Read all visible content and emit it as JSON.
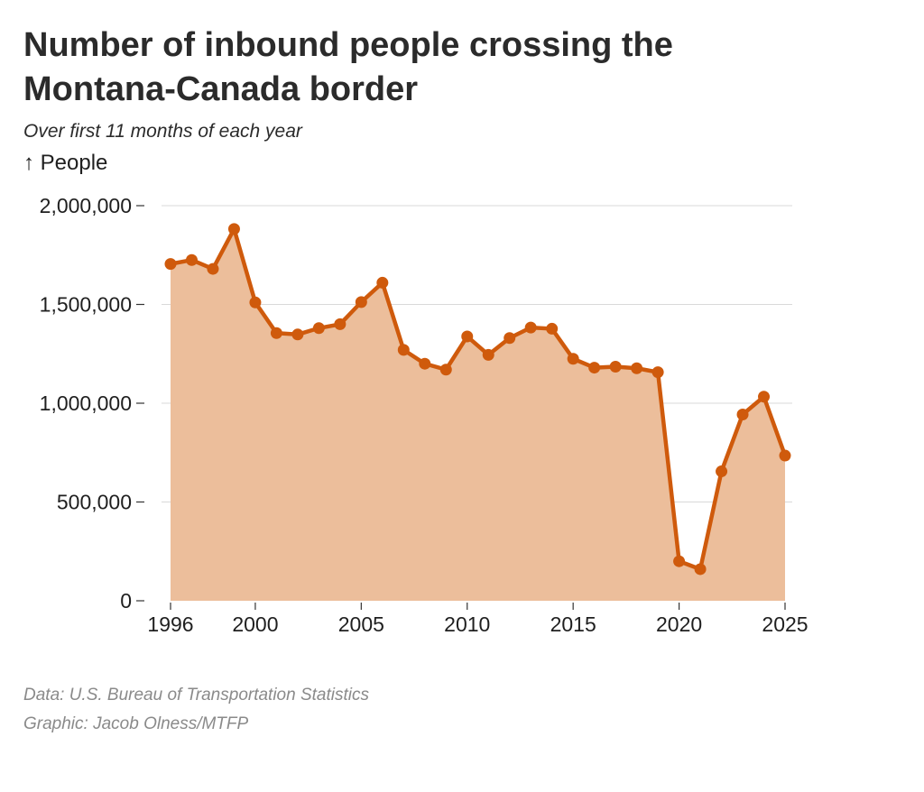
{
  "chart_data": {
    "type": "area",
    "title_lines": [
      "Number of inbound people crossing the",
      "Montana-Canada border"
    ],
    "subtitle": "Over first 11 months of each year",
    "ylabel": "↑ People",
    "xlabel": "",
    "x": [
      1996,
      1997,
      1998,
      1999,
      2000,
      2001,
      2002,
      2003,
      2004,
      2005,
      2006,
      2007,
      2008,
      2009,
      2010,
      2011,
      2012,
      2013,
      2014,
      2015,
      2016,
      2017,
      2018,
      2019,
      2020,
      2021,
      2022,
      2023,
      2024,
      2025
    ],
    "series": [
      {
        "values": [
          1705000,
          1725000,
          1680000,
          1882000,
          1510000,
          1355000,
          1348000,
          1380000,
          1400000,
          1512000,
          1610000,
          1270000,
          1200000,
          1170000,
          1338000,
          1245000,
          1330000,
          1383000,
          1377000,
          1225000,
          1180000,
          1185000,
          1177000,
          1157000,
          200000,
          160000,
          655000,
          943000,
          1033000,
          735000
        ],
        "color": "#cf5a0c",
        "fill": "#ecbe9b"
      }
    ],
    "xlim": [
      1996,
      2025
    ],
    "ylim": [
      0,
      2000000
    ],
    "x_ticks": [
      1996,
      2000,
      2005,
      2010,
      2015,
      2020,
      2025
    ],
    "y_ticks": [
      0,
      500000,
      1000000,
      1500000,
      2000000
    ],
    "x_tick_labels": [
      "1996",
      "2000",
      "2005",
      "2010",
      "2015",
      "2020",
      "2025"
    ],
    "y_tick_labels": [
      "0",
      "500,000",
      "1,000,000",
      "1,500,000",
      "2,000,000"
    ],
    "grid": true,
    "legend": "none"
  },
  "source": {
    "data": "Data: U.S. Bureau of Transportation Statistics",
    "graphic": "Graphic: Jacob Olness/MTFP"
  }
}
